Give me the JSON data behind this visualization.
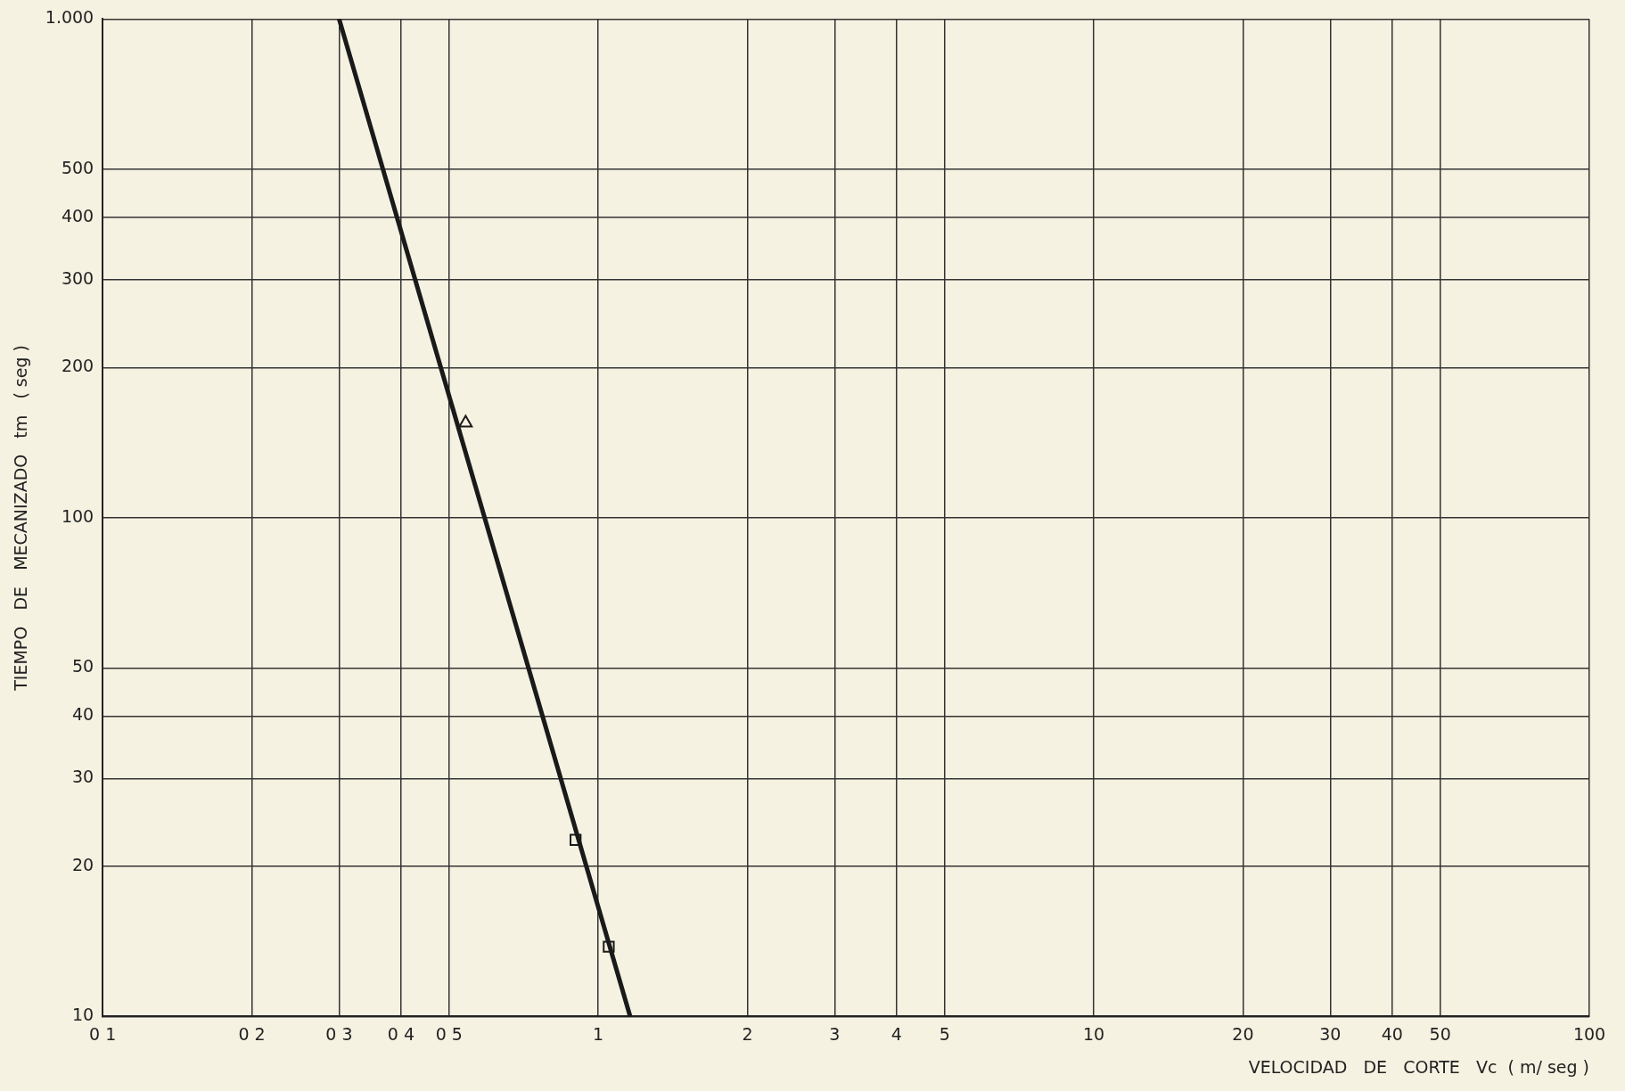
{
  "chart_data": {
    "type": "line",
    "xlabel": "VELOCIDAD   DE   CORTE   Vc  ( m/ seg )",
    "ylabel": "TIEMPO   DE   MECANIZADO   tm   ( seg )",
    "log": "xy",
    "grid": true,
    "legend": false,
    "xlim": [
      0.1,
      100
    ],
    "ylim": [
      10,
      1000
    ],
    "xticks": [
      {
        "value": 0.1,
        "label": "0 1"
      },
      {
        "value": 0.2,
        "label": "0 2"
      },
      {
        "value": 0.3,
        "label": "0 3"
      },
      {
        "value": 0.4,
        "label": "0 4"
      },
      {
        "value": 0.5,
        "label": "0 5"
      },
      1,
      2,
      3,
      4,
      5,
      10,
      20,
      30,
      40,
      50,
      100
    ],
    "yticks": [
      10,
      20,
      30,
      40,
      50,
      100,
      200,
      300,
      400,
      500,
      {
        "value": 1000,
        "label": "1.000"
      }
    ],
    "series": [
      {
        "type": "line",
        "color": "#1a1a1a",
        "marker": "none",
        "x": [
          0.3,
          1.16
        ],
        "values": [
          1000,
          10
        ]
      },
      {
        "type": "scatter",
        "color": "#1a1a1a",
        "marker": "triangle",
        "x": [
          0.54
        ],
        "values": [
          155
        ]
      },
      {
        "type": "scatter",
        "color": "#1a1a1a",
        "marker": "square",
        "x": [
          0.9,
          1.05
        ],
        "values": [
          22.6,
          13.8
        ]
      }
    ]
  }
}
